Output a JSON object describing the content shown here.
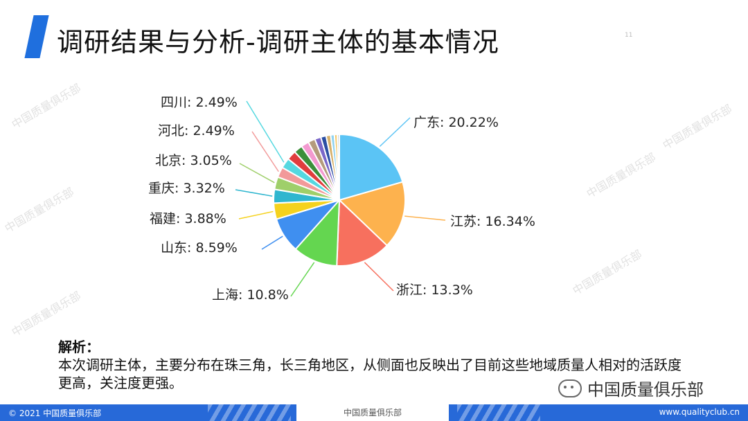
{
  "header": {
    "title": "调研结果与分析-调研主体的基本情况",
    "page_number": "11"
  },
  "watermark_text": "中国质量俱乐部",
  "chart_data": {
    "type": "pie",
    "title": "",
    "labeled_slices": [
      {
        "name": "广东",
        "value": 20.22,
        "label": "广东: 20.22%",
        "color": "#5bc4f5"
      },
      {
        "name": "江苏",
        "value": 16.34,
        "label": "江苏: 16.34%",
        "color": "#fdb24e"
      },
      {
        "name": "浙江",
        "value": 13.3,
        "label": "浙江: 13.3%",
        "color": "#f7705e"
      },
      {
        "name": "上海",
        "value": 10.8,
        "label": "上海: 10.8%",
        "color": "#64d650"
      },
      {
        "name": "山东",
        "value": 8.59,
        "label": "山东: 8.59%",
        "color": "#3f8ff0"
      },
      {
        "name": "福建",
        "value": 3.88,
        "label": "福建: 3.88%",
        "color": "#f5d21e"
      },
      {
        "name": "重庆",
        "value": 3.32,
        "label": "重庆: 3.32%",
        "color": "#2fb6cf"
      },
      {
        "name": "北京",
        "value": 3.05,
        "label": "北京: 3.05%",
        "color": "#9fcf6a"
      },
      {
        "name": "河北",
        "value": 2.49,
        "label": "河北: 2.49%",
        "color": "#f29a9a"
      },
      {
        "name": "四川",
        "value": 2.49,
        "label": "四川: 2.49%",
        "color": "#55d8e0"
      }
    ],
    "other_small_slices": [
      {
        "value": 2.3,
        "color": "#e03d3d"
      },
      {
        "value": 2.1,
        "color": "#3c8f3a"
      },
      {
        "value": 1.9,
        "color": "#f39ad0"
      },
      {
        "value": 1.7,
        "color": "#b49b7c"
      },
      {
        "value": 1.5,
        "color": "#7b68c9"
      },
      {
        "value": 1.3,
        "color": "#2b4fa3"
      },
      {
        "value": 1.1,
        "color": "#d6b06a"
      },
      {
        "value": 0.9,
        "color": "#8fd3f0"
      },
      {
        "value": 0.7,
        "color": "#f2c766"
      },
      {
        "value": 0.5,
        "color": "#cfcfcf"
      }
    ]
  },
  "analysis": {
    "heading": "解析：",
    "text": "本次调研主体，主要分布在珠三角，长三角地区，从侧面也反映出了目前这些地域质量人相对的活跃度更高，关注度更强。"
  },
  "logo": {
    "text": "中国质量俱乐部"
  },
  "footer": {
    "left": "© 2021 中国质量俱乐部",
    "center": "中国质量俱乐部",
    "right": "www.qualityclub.cn"
  }
}
